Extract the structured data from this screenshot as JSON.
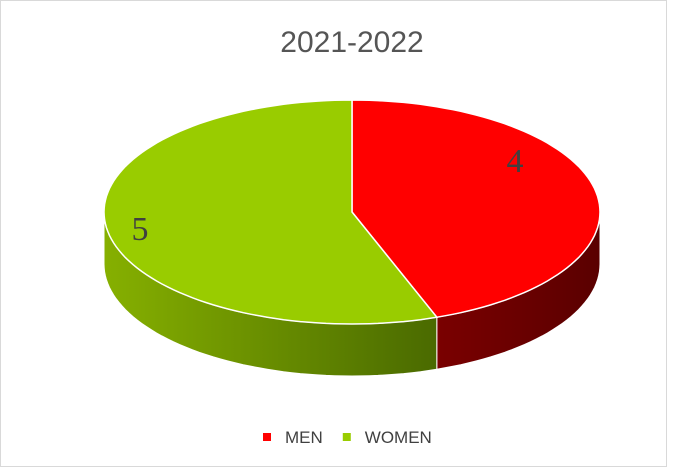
{
  "chart_data": {
    "type": "pie3d",
    "title": "2021-2022",
    "categories": [
      "MEN",
      "WOMEN"
    ],
    "values": [
      4,
      5
    ],
    "colors": [
      "#ff0000",
      "#99cc00"
    ],
    "legend": "bottom"
  }
}
